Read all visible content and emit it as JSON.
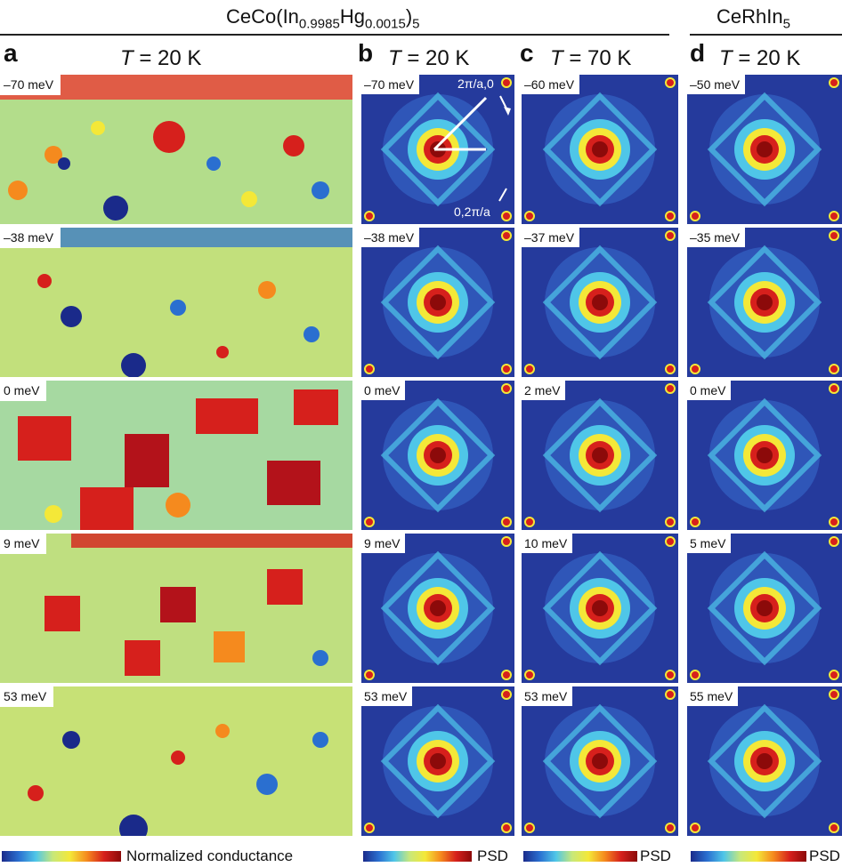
{
  "header": {
    "compound_left": {
      "pre": "CeCo(In",
      "sub1": "0.9985",
      "mid": "Hg",
      "sub2": "0.0015",
      "post": ")",
      "sub3": "5"
    },
    "compound_right": {
      "pre": "CeRhIn",
      "sub": "5"
    }
  },
  "panels": [
    {
      "letter": "a",
      "temp_var": "T",
      "temp_val": " = 20 K",
      "energies": [
        "–70 meV",
        "–38 meV",
        "0 meV",
        "9 meV",
        "53 meV"
      ]
    },
    {
      "letter": "b",
      "temp_var": "T",
      "temp_val": " = 20 K",
      "energies": [
        "–70 meV",
        "–38 meV",
        "0 meV",
        "9 meV",
        "53 meV"
      ]
    },
    {
      "letter": "c",
      "temp_var": "T",
      "temp_val": " = 70 K",
      "energies": [
        "–60 meV",
        "–37 meV",
        "2 meV",
        "10 meV",
        "53 meV"
      ]
    },
    {
      "letter": "d",
      "temp_var": "T",
      "temp_val": " = 20 K",
      "energies": [
        "–50 meV",
        "–35 meV",
        "0 meV",
        "5 meV",
        "55 meV"
      ]
    }
  ],
  "annotations": {
    "q1": "2π/a,0",
    "q2": "0,2π/a"
  },
  "colorbars": {
    "conductance": "Normalized conductance",
    "psd": "PSD"
  },
  "colors": {
    "dark_blue": "#1a2a8a",
    "blue": "#2a6fd0",
    "cyan": "#4fc6e8",
    "yellow": "#f4e838",
    "orange": "#f58a1e",
    "red": "#d6201c",
    "dark_red": "#8c0a0a",
    "bg_blue": "#253a9c"
  }
}
